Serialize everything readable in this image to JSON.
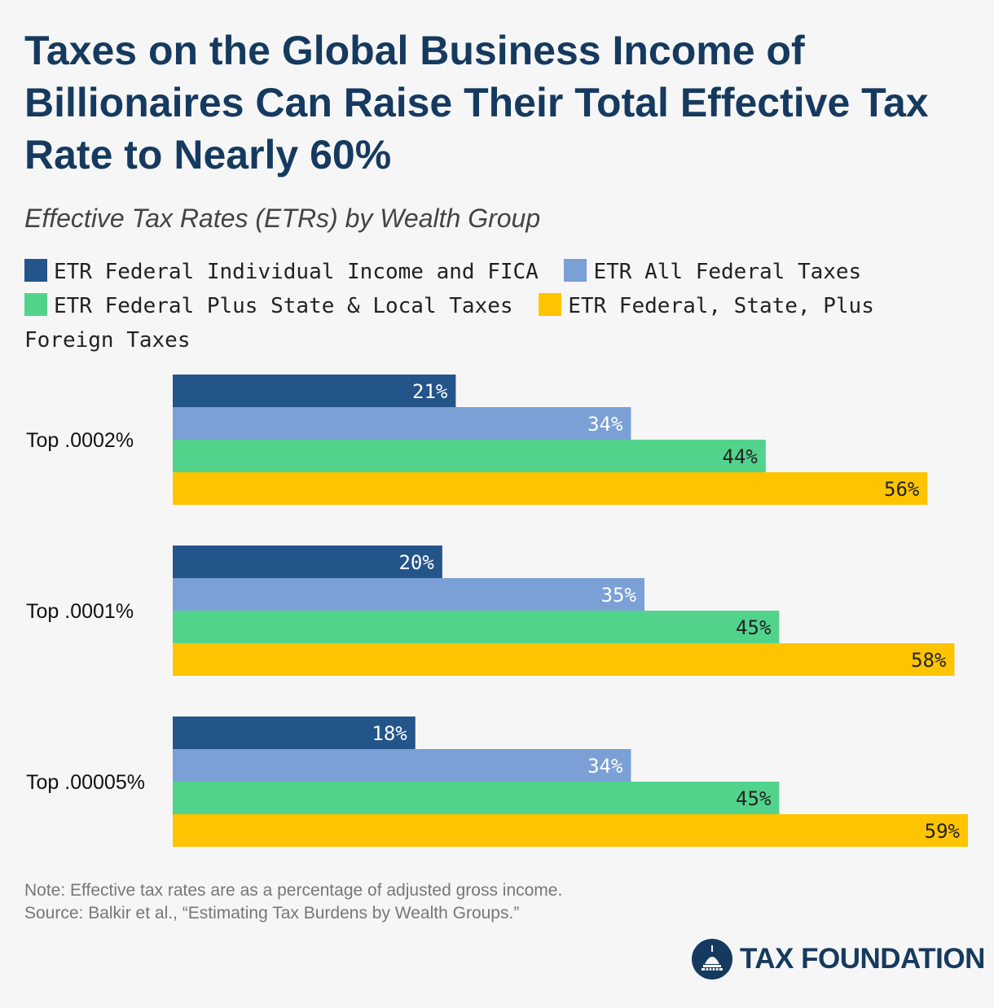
{
  "title": "Taxes on the Global Business Income of Billionaires Can Raise Their Total Effective Tax Rate to Nearly 60%",
  "subtitle": "Effective Tax Rates (ETRs) by Wealth Group",
  "colors": {
    "federal_individual": "#24558a",
    "all_federal": "#7aa0d6",
    "federal_state_local": "#52d38c",
    "federal_state_foreign": "#ffc400"
  },
  "chart_data": {
    "type": "bar",
    "orientation": "horizontal",
    "categories": [
      "Top .0002%",
      "Top .0001%",
      "Top .00005%"
    ],
    "series": [
      {
        "name": "ETR Federal Individual Income and FICA",
        "values": [
          21,
          20,
          18
        ],
        "labels": [
          "21%",
          "20%",
          "18%"
        ],
        "color": "#24558a"
      },
      {
        "name": "ETR All Federal Taxes",
        "values": [
          34,
          35,
          34
        ],
        "labels": [
          "34%",
          "35%",
          "34%"
        ],
        "color": "#7aa0d6"
      },
      {
        "name": "ETR Federal Plus State & Local Taxes",
        "values": [
          44,
          45,
          45
        ],
        "labels": [
          "44%",
          "45%",
          "45%"
        ],
        "color": "#52d38c"
      },
      {
        "name": "ETR Federal, State, Plus Foreign Taxes",
        "values": [
          56,
          58,
          59
        ],
        "labels": [
          "56%",
          "58%",
          "59%"
        ],
        "color": "#ffc400"
      }
    ],
    "xlim": [
      0,
      59
    ],
    "grid": false,
    "legend": "top"
  },
  "note": "Note: Effective tax rates are as a percentage of adjusted gross income.",
  "source": "Source: Balkir et al., “Estimating Tax Burdens by Wealth Groups.”",
  "brand": "TAX FOUNDATION",
  "brand_icon": "capitol-dome-icon"
}
